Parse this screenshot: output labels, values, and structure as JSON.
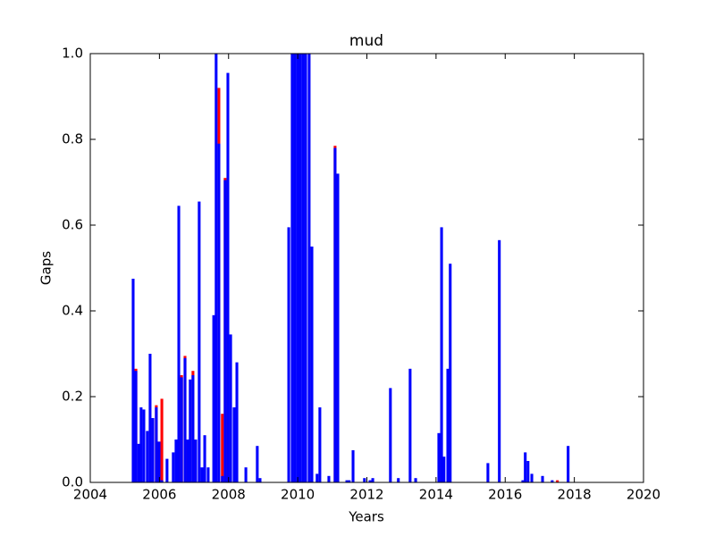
{
  "chart_data": {
    "type": "bar",
    "title": "mud",
    "x_label": "Years",
    "y_label": "Gaps",
    "x": [
      2005.24,
      2005.32,
      2005.4,
      2005.47,
      2005.55,
      2005.65,
      2005.73,
      2005.81,
      2005.91,
      2005.99,
      2006.07,
      2006.22,
      2006.4,
      2006.48,
      2006.56,
      2006.64,
      2006.74,
      2006.82,
      2006.89,
      2006.97,
      2007.05,
      2007.15,
      2007.23,
      2007.31,
      2007.41,
      2007.57,
      2007.64,
      2007.72,
      2007.82,
      2007.9,
      2007.98,
      2008.06,
      2008.16,
      2008.24,
      2008.5,
      2008.83,
      2008.91,
      2009.74,
      2009.84,
      2009.92,
      2010.0,
      2010.07,
      2010.15,
      2010.23,
      2010.33,
      2010.41,
      2010.56,
      2010.64,
      2010.9,
      2011.08,
      2011.16,
      2011.42,
      2011.49,
      2011.6,
      2011.93,
      2012.09,
      2012.17,
      2012.68,
      2012.91,
      2013.25,
      2013.41,
      2014.08,
      2014.16,
      2014.23,
      2014.34,
      2014.41,
      2015.5,
      2015.83,
      2016.51,
      2016.58,
      2016.66,
      2016.77,
      2017.08,
      2017.36,
      2017.51,
      2017.82
    ],
    "bar_width": 0.08,
    "series": [
      {
        "color": "#ff0000",
        "values": [
          null,
          0.265,
          null,
          null,
          null,
          null,
          null,
          null,
          0.18,
          0.095,
          0.195,
          null,
          null,
          null,
          null,
          0.25,
          0.295,
          0.1,
          null,
          0.26,
          null,
          null,
          null,
          null,
          null,
          null,
          null,
          0.92,
          0.16,
          0.71,
          null,
          null,
          null,
          null,
          null,
          null,
          null,
          null,
          null,
          null,
          null,
          null,
          null,
          null,
          null,
          null,
          null,
          null,
          null,
          0.785,
          null,
          null,
          null,
          null,
          null,
          null,
          null,
          null,
          null,
          null,
          null,
          null,
          null,
          null,
          null,
          null,
          null,
          null,
          null,
          null,
          null,
          null,
          null,
          null,
          0.005,
          null
        ]
      },
      {
        "color": "#0000ff",
        "values": [
          0.475,
          0.26,
          0.09,
          0.175,
          0.17,
          0.12,
          0.3,
          0.15,
          0.175,
          0.095,
          0.005,
          0.055,
          0.07,
          0.1,
          0.645,
          0.245,
          0.29,
          0.1,
          0.24,
          0.25,
          0.1,
          0.655,
          0.035,
          0.11,
          0.035,
          0.39,
          1.0,
          0.79,
          0.015,
          0.705,
          0.955,
          0.345,
          0.175,
          0.28,
          0.035,
          0.085,
          0.01,
          0.595,
          1.0,
          1.0,
          1.0,
          1.0,
          1.0,
          1.0,
          1.0,
          0.55,
          0.02,
          0.175,
          0.015,
          0.78,
          0.72,
          0.005,
          0.005,
          0.075,
          0.01,
          0.005,
          0.01,
          0.22,
          0.01,
          0.265,
          0.01,
          0.115,
          0.595,
          0.06,
          0.265,
          0.51,
          0.045,
          0.565,
          0.005,
          0.07,
          0.05,
          0.02,
          0.015,
          0.005,
          null,
          0.085
        ]
      }
    ],
    "xlim": [
      2004,
      2020
    ],
    "xticks": [
      2004,
      2006,
      2008,
      2010,
      2012,
      2014,
      2016,
      2018,
      2020
    ],
    "ylim": [
      0,
      1
    ],
    "yticks": [
      {
        "value": 0,
        "label": "0.0"
      },
      0.2,
      0.4,
      0.6,
      0.8,
      {
        "value": 1,
        "label": "1.0"
      }
    ],
    "grid": false
  }
}
